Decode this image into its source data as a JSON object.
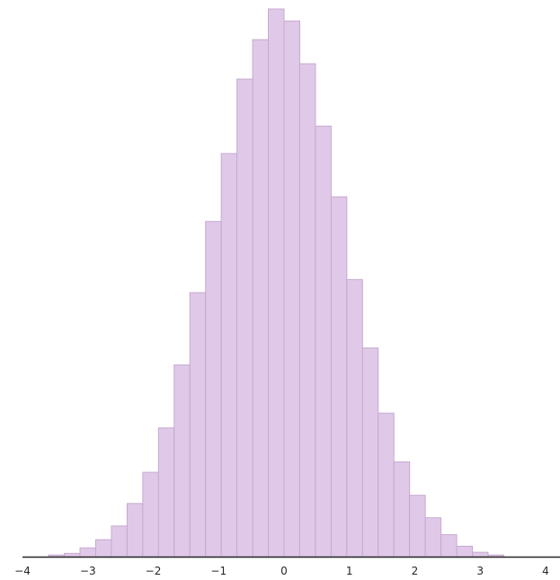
{
  "chart_data": {
    "type": "bar",
    "subtype": "histogram",
    "title": "",
    "xlabel": "",
    "ylabel": "",
    "xlim": [
      -4,
      4
    ],
    "ylim": [
      0,
      1
    ],
    "grid": false,
    "legend": "none",
    "bar_color": "#e0c9e8",
    "bar_edge_color": "#c4aacf",
    "bin_width": 0.24,
    "bins_start": [
      -3.6,
      -3.36,
      -3.12,
      -2.88,
      -2.64,
      -2.4,
      -2.16,
      -1.92,
      -1.68,
      -1.44,
      -1.2,
      -0.96,
      -0.72,
      -0.48,
      -0.24,
      0.0,
      0.24,
      0.48,
      0.72,
      0.96,
      1.2,
      1.44,
      1.68,
      1.92,
      2.16,
      2.4,
      2.64,
      2.88,
      3.12
    ],
    "values": [
      0.003,
      0.006,
      0.016,
      0.031,
      0.056,
      0.097,
      0.154,
      0.235,
      0.35,
      0.482,
      0.612,
      0.736,
      0.872,
      0.944,
      1.0,
      0.978,
      0.9,
      0.786,
      0.657,
      0.506,
      0.381,
      0.262,
      0.173,
      0.112,
      0.071,
      0.04,
      0.019,
      0.008,
      0.003
    ],
    "xticks": [
      "−4",
      "−3",
      "−2",
      "−1",
      "0",
      "1",
      "2",
      "3",
      "4"
    ],
    "xtick_values": [
      -4,
      -3,
      -2,
      -1,
      0,
      1,
      2,
      3,
      4
    ]
  }
}
